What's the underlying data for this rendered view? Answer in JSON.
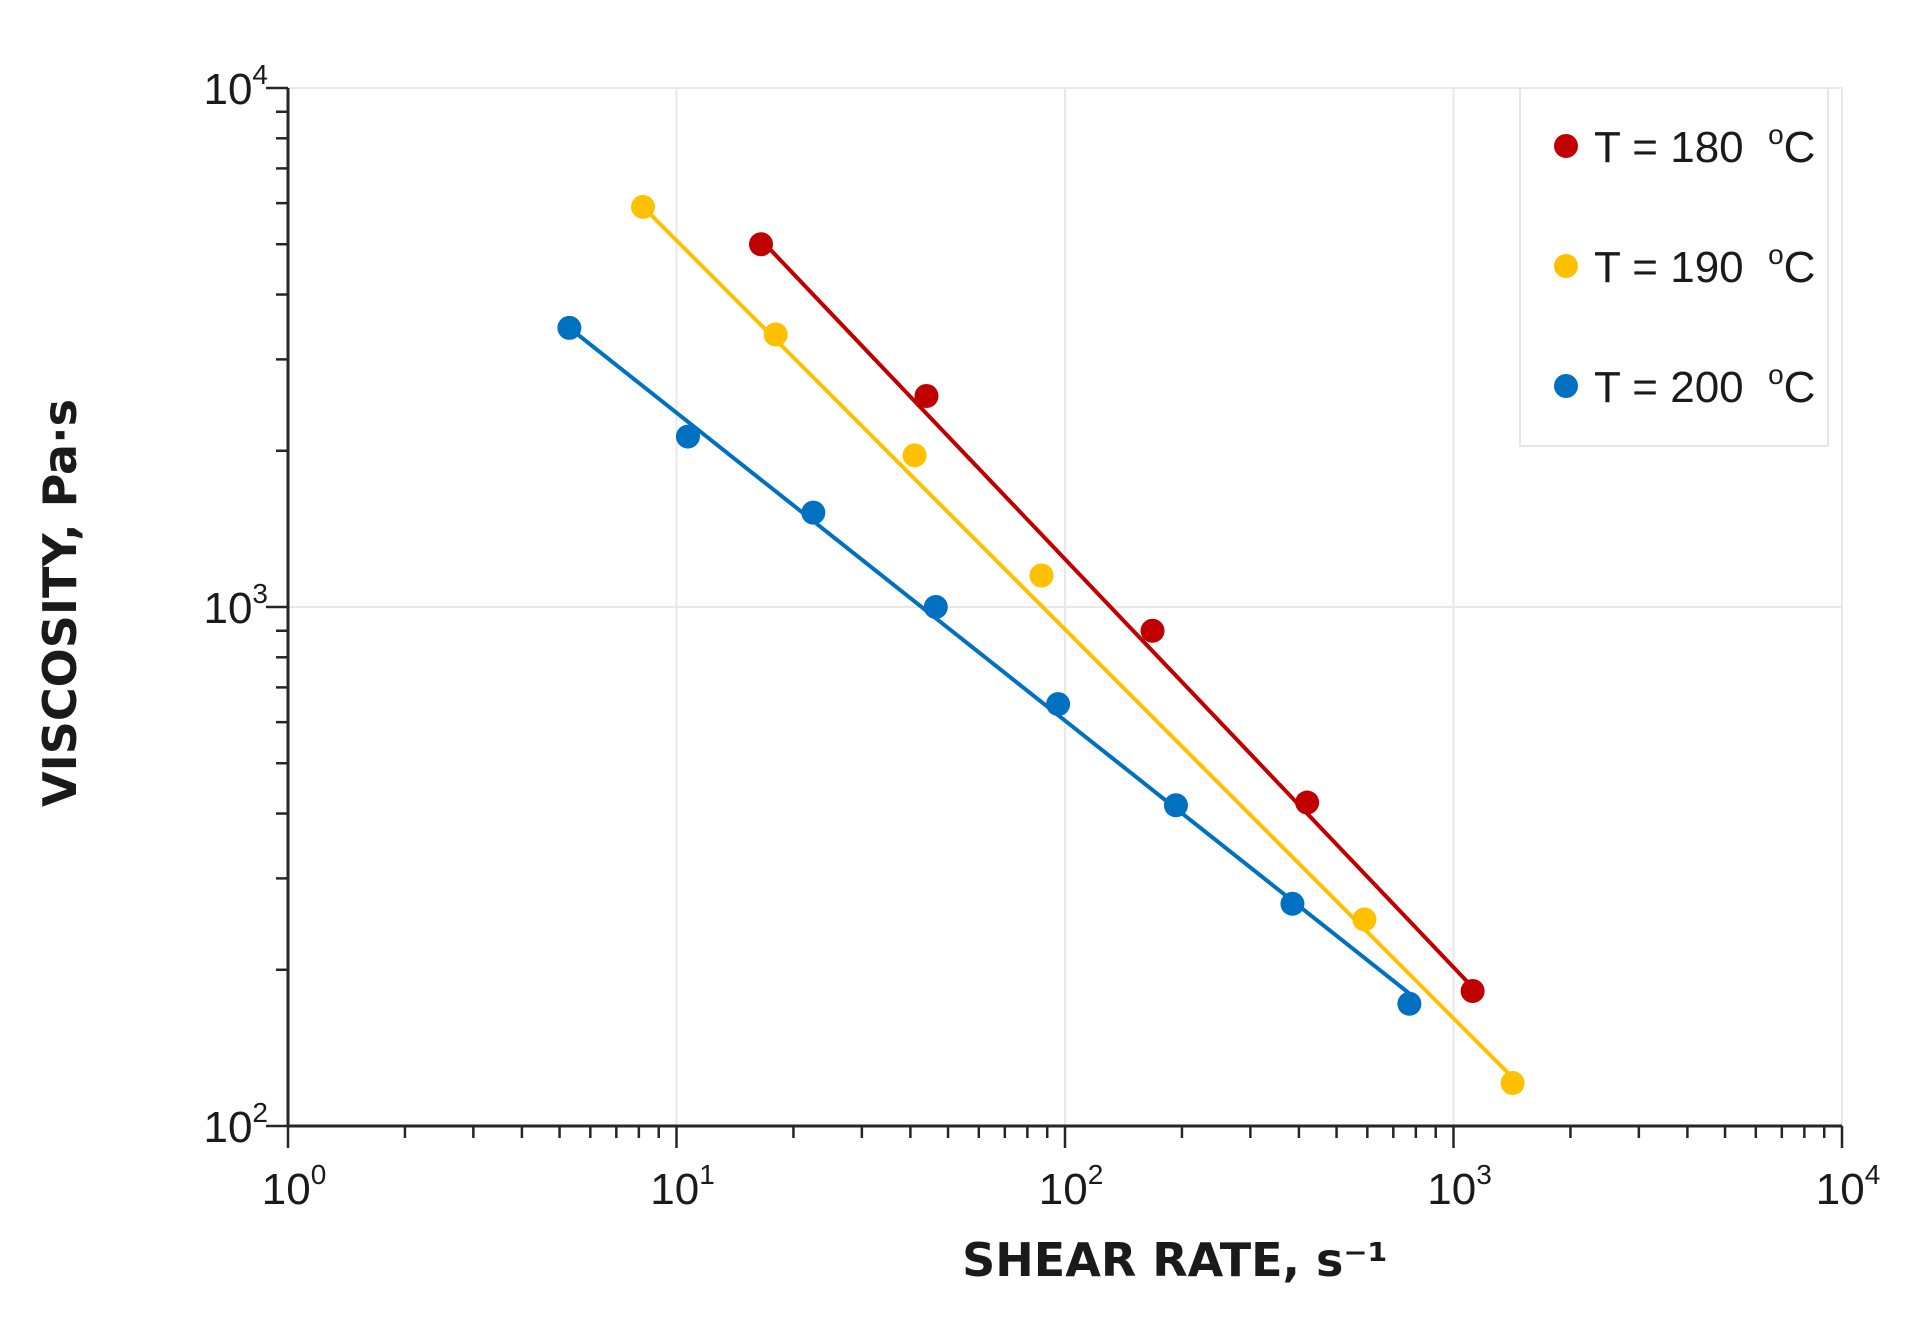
{
  "chart_data": {
    "type": "scatter",
    "x_scale": "log",
    "y_scale": "log",
    "xlabel": "SHEAR RATE, s⁻¹",
    "ylabel": "VISCOSITY, Pa·s",
    "xlim": [
      1,
      10000
    ],
    "ylim": [
      100,
      10000
    ],
    "x_tick_labels": [
      {
        "base": "10",
        "exp": "0"
      },
      {
        "base": "10",
        "exp": "1"
      },
      {
        "base": "10",
        "exp": "2"
      },
      {
        "base": "10",
        "exp": "3"
      },
      {
        "base": "10",
        "exp": "4"
      }
    ],
    "y_tick_labels": [
      {
        "base": "10",
        "exp": "2"
      },
      {
        "base": "10",
        "exp": "3"
      },
      {
        "base": "10",
        "exp": "4"
      }
    ],
    "grid": true,
    "legend_position": "top-right",
    "series": [
      {
        "name": "T = 180",
        "unit": "°C",
        "unit_super": "o",
        "unit_base": "C",
        "color": "#c00000",
        "x": [
          16.5,
          44,
          168,
          420,
          1120
        ],
        "y": [
          5000,
          2550,
          900,
          420,
          182
        ],
        "fit": {
          "x": [
            16.5,
            1120
          ],
          "y": [
            5100,
            185
          ]
        }
      },
      {
        "name": "T = 190",
        "unit": "°C",
        "unit_super": "o",
        "unit_base": "C",
        "color": "#ffc000",
        "x": [
          8.2,
          18,
          41,
          87,
          590,
          1420
        ],
        "y": [
          5900,
          3350,
          1960,
          1150,
          250,
          121
        ],
        "fit": {
          "x": [
            8.2,
            1420
          ],
          "y": [
            5900,
            124
          ]
        }
      },
      {
        "name": "T = 200",
        "unit": "°C",
        "unit_super": "o",
        "unit_base": "C",
        "color": "#0070c0",
        "x": [
          5.3,
          10.7,
          22.5,
          46.5,
          96,
          193,
          385,
          770
        ],
        "y": [
          3450,
          2130,
          1520,
          1000,
          650,
          415,
          268,
          172
        ],
        "fit": {
          "x": [
            5.3,
            770
          ],
          "y": [
            3450,
            180
          ]
        }
      }
    ]
  }
}
